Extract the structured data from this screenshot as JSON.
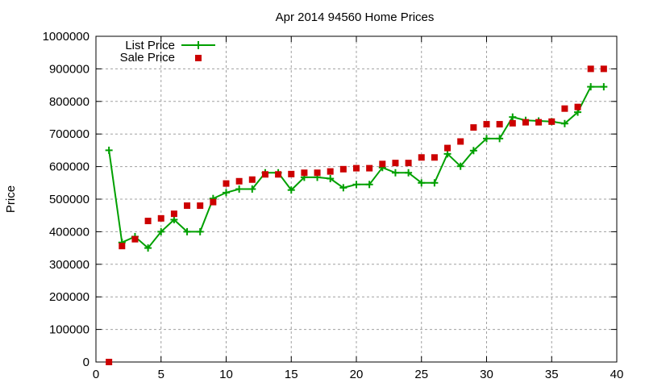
{
  "chart_data": {
    "type": "line",
    "title": "Apr 2014 94560 Home Prices",
    "xlabel": "",
    "ylabel": "Price",
    "xlim": [
      0,
      40
    ],
    "ylim": [
      0,
      1000000
    ],
    "xticks": [
      0,
      5,
      10,
      15,
      20,
      25,
      30,
      35,
      40
    ],
    "yticks": [
      0,
      100000,
      200000,
      300000,
      400000,
      500000,
      600000,
      700000,
      800000,
      900000,
      1000000
    ],
    "grid": true,
    "legend_position": "top-left",
    "x": [
      1,
      2,
      3,
      4,
      5,
      6,
      7,
      8,
      9,
      10,
      11,
      12,
      13,
      14,
      15,
      16,
      17,
      18,
      19,
      20,
      21,
      22,
      23,
      24,
      25,
      26,
      27,
      28,
      29,
      30,
      31,
      32,
      33,
      34,
      35,
      36,
      37,
      38,
      39
    ],
    "series": [
      {
        "name": "List Price",
        "style": "linespoints",
        "marker": "plus",
        "color": "#00a000",
        "values": [
          650000,
          367000,
          385000,
          350000,
          400000,
          437000,
          400000,
          400000,
          502000,
          520000,
          531000,
          531000,
          581000,
          581000,
          528000,
          567000,
          567000,
          563000,
          535000,
          545000,
          545000,
          597000,
          581000,
          581000,
          550000,
          550000,
          639000,
          601000,
          649000,
          686000,
          686000,
          752000,
          742000,
          740000,
          738000,
          732000,
          767000,
          845000,
          845000
        ]
      },
      {
        "name": "Sale Price",
        "style": "points",
        "marker": "square",
        "color": "#cc0000",
        "values": [
          0,
          356000,
          377000,
          433000,
          441000,
          455000,
          480000,
          480000,
          491000,
          548000,
          555000,
          560000,
          576000,
          576000,
          577000,
          581000,
          581000,
          585000,
          592000,
          595000,
          595000,
          608000,
          611000,
          611000,
          628000,
          628000,
          657000,
          677000,
          720000,
          730000,
          730000,
          733000,
          736000,
          736000,
          738000,
          778000,
          783000,
          900000,
          900000
        ]
      }
    ]
  },
  "legend": {
    "list_label": "List Price",
    "sale_label": "Sale Price"
  },
  "colors": {
    "list": "#00a000",
    "sale": "#cc0000",
    "grid": "#a0a0a0",
    "axis": "#000000"
  }
}
